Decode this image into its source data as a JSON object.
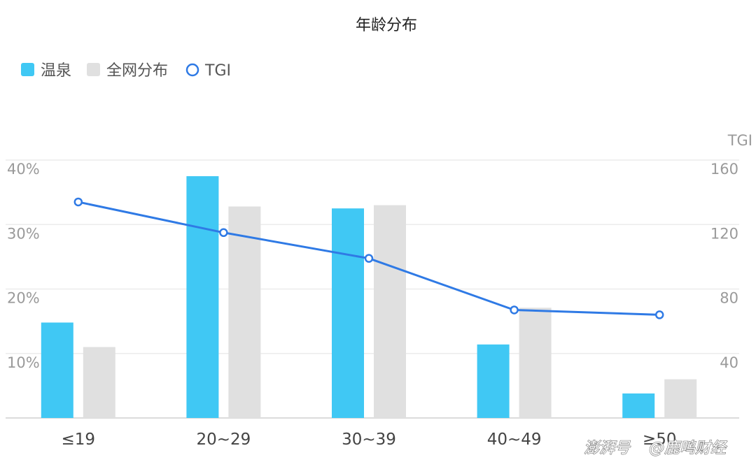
{
  "chart_data": {
    "type": "bar",
    "title": "年龄分布",
    "categories": [
      "≤19",
      "20~29",
      "30~39",
      "40~49",
      "≥50"
    ],
    "series": [
      {
        "name": "温泉",
        "type": "bar",
        "axis": "left",
        "color": "#40c8f4",
        "values": [
          14.8,
          37.5,
          32.5,
          11.4,
          3.8
        ]
      },
      {
        "name": "全网分布",
        "type": "bar",
        "axis": "left",
        "color": "#e0e0e0",
        "values": [
          11.0,
          32.8,
          33.0,
          17.1,
          6.0
        ]
      },
      {
        "name": "TGI",
        "type": "line",
        "axis": "right",
        "color": "#2f7ae5",
        "values": [
          134,
          115,
          99,
          67,
          64
        ]
      }
    ],
    "y_left": {
      "range": [
        0,
        40
      ],
      "ticks": [
        "10%",
        "20%",
        "30%",
        "40%"
      ]
    },
    "y_right": {
      "label": "TGI",
      "range": [
        0,
        160
      ],
      "ticks": [
        "40",
        "80",
        "120",
        "160"
      ]
    },
    "grid": true,
    "legend_position": "top-left"
  },
  "watermark": {
    "source": "澎湃号",
    "author": "@鹿鸣财经"
  }
}
